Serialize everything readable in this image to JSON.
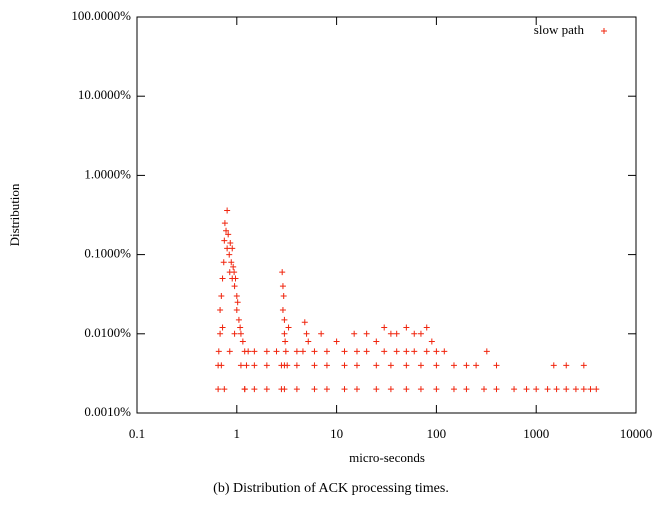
{
  "chart_data": {
    "type": "scatter",
    "caption": "(b) Distribution of ACK processing times.",
    "x_label": "micro-seconds",
    "y_label": "Distribution",
    "x_log": true,
    "y_log": true,
    "xlim": [
      0.1,
      10000
    ],
    "ylim": [
      0.001,
      100
    ],
    "xticks": [
      0.1,
      1,
      10,
      100,
      1000,
      10000
    ],
    "yticks": [
      {
        "value": 0.001,
        "label": "0.0010%"
      },
      {
        "value": 0.01,
        "label": "0.0100%"
      },
      {
        "value": 0.1,
        "label": "0.1000%"
      },
      {
        "value": 1,
        "label": "1.0000%"
      },
      {
        "value": 10,
        "label": "10.0000%"
      },
      {
        "value": 100,
        "label": "100.0000%"
      }
    ],
    "legend": "top-right",
    "series": [
      {
        "name": "slow path",
        "color": "#f0250e",
        "x": [
          0.65,
          0.65,
          0.66,
          0.68,
          0.68,
          0.7,
          0.72,
          0.72,
          0.74,
          0.75,
          0.76,
          0.78,
          0.8,
          0.8,
          0.82,
          0.84,
          0.85,
          0.86,
          0.88,
          0.9,
          0.9,
          0.92,
          0.94,
          0.95,
          0.97,
          1.0,
          1.0,
          1.02,
          1.05,
          1.08,
          1.1,
          1.15,
          1.2,
          1.25,
          1.3,
          0.7,
          0.75,
          0.85,
          0.95,
          1.1,
          1.2,
          2.85,
          2.9,
          2.9,
          2.95,
          3.0,
          3.0,
          3.05,
          3.1,
          3.2,
          3.3,
          2.8,
          2.8,
          4.8,
          5,
          5.2,
          4.6,
          7,
          10,
          15,
          20,
          25,
          30,
          35,
          40,
          50,
          60,
          70,
          80,
          90,
          1.5,
          2,
          2.5,
          4,
          6,
          8,
          12,
          16,
          20,
          30,
          40,
          50,
          60,
          80,
          100,
          120,
          320,
          1.5,
          2,
          3,
          4,
          6,
          8,
          12,
          16,
          25,
          35,
          50,
          70,
          100,
          150,
          200,
          250,
          400,
          1500,
          2000,
          3000,
          1.2,
          1.5,
          2,
          3,
          4,
          6,
          8,
          12,
          16,
          25,
          35,
          50,
          70,
          100,
          150,
          200,
          300,
          400,
          600,
          800,
          1000,
          1300,
          1600,
          2000,
          2500,
          3000,
          3500,
          4000
        ],
        "values": [
          0.002,
          0.004,
          0.006,
          0.01,
          0.02,
          0.03,
          0.05,
          0.012,
          0.08,
          0.15,
          0.25,
          0.2,
          0.36,
          0.12,
          0.18,
          0.1,
          0.06,
          0.14,
          0.08,
          0.12,
          0.05,
          0.07,
          0.06,
          0.04,
          0.05,
          0.03,
          0.02,
          0.025,
          0.015,
          0.012,
          0.01,
          0.008,
          0.006,
          0.004,
          0.006,
          0.004,
          0.002,
          0.006,
          0.01,
          0.004,
          0.002,
          0.06,
          0.04,
          0.02,
          0.03,
          0.015,
          0.01,
          0.008,
          0.006,
          0.004,
          0.012,
          0.004,
          0.002,
          0.014,
          0.01,
          0.008,
          0.006,
          0.01,
          0.008,
          0.01,
          0.01,
          0.008,
          0.012,
          0.01,
          0.01,
          0.012,
          0.01,
          0.01,
          0.012,
          0.008,
          0.006,
          0.006,
          0.006,
          0.006,
          0.006,
          0.006,
          0.006,
          0.006,
          0.006,
          0.006,
          0.006,
          0.006,
          0.006,
          0.006,
          0.006,
          0.006,
          0.006,
          0.004,
          0.004,
          0.004,
          0.004,
          0.004,
          0.004,
          0.004,
          0.004,
          0.004,
          0.004,
          0.004,
          0.004,
          0.004,
          0.004,
          0.004,
          0.004,
          0.004,
          0.004,
          0.004,
          0.004,
          0.002,
          0.002,
          0.002,
          0.002,
          0.002,
          0.002,
          0.002,
          0.002,
          0.002,
          0.002,
          0.002,
          0.002,
          0.002,
          0.002,
          0.002,
          0.002,
          0.002,
          0.002,
          0.002,
          0.002,
          0.002,
          0.002,
          0.002,
          0.002,
          0.002,
          0.002,
          0.002,
          0.002
        ]
      }
    ]
  }
}
